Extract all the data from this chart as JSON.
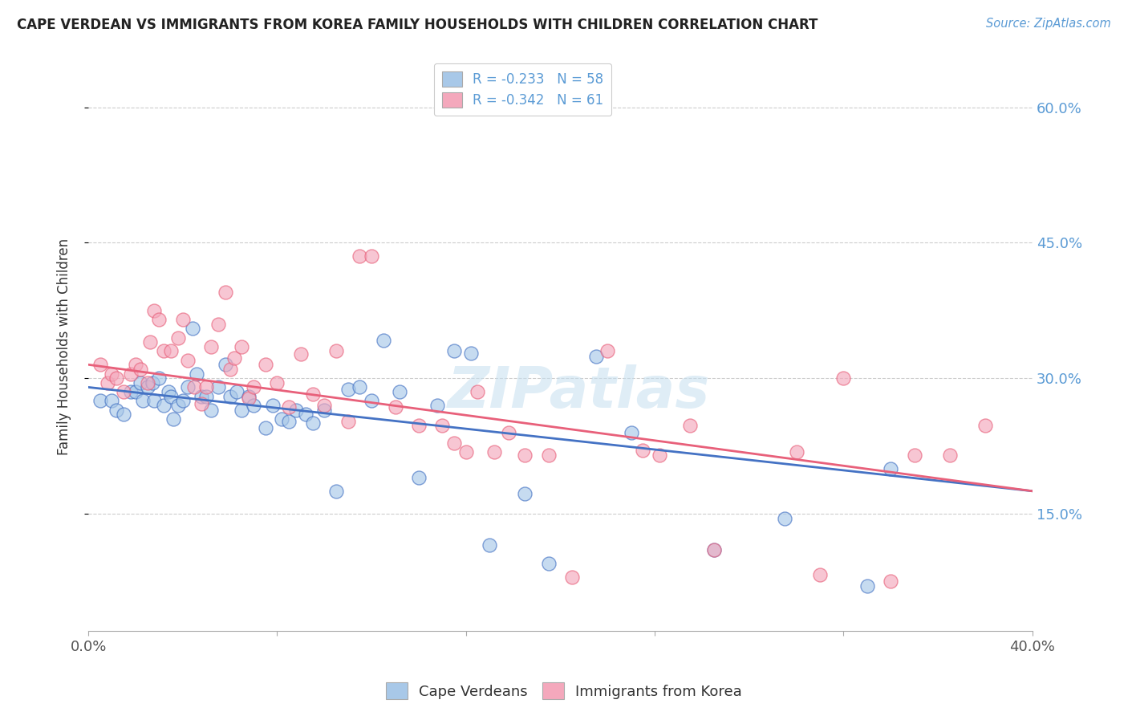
{
  "title": "CAPE VERDEAN VS IMMIGRANTS FROM KOREA FAMILY HOUSEHOLDS WITH CHILDREN CORRELATION CHART",
  "source": "Source: ZipAtlas.com",
  "ylabel": "Family Households with Children",
  "xlim": [
    0.0,
    0.4
  ],
  "ylim": [
    0.02,
    0.65
  ],
  "yticks": [
    0.15,
    0.3,
    0.45,
    0.6
  ],
  "ytick_labels": [
    "15.0%",
    "30.0%",
    "45.0%",
    "60.0%"
  ],
  "xticks": [
    0.0,
    0.08,
    0.16,
    0.24,
    0.32,
    0.4
  ],
  "xtick_labels": [
    "0.0%",
    "",
    "",
    "",
    "",
    "40.0%"
  ],
  "legend_r1": "R = -0.233   N = 58",
  "legend_r2": "R = -0.342   N = 61",
  "color_blue": "#A8C8E8",
  "color_pink": "#F4A8BC",
  "line_blue": "#4472C4",
  "line_pink": "#E8607A",
  "watermark": "ZIPatlas",
  "blue_line_start": 0.29,
  "blue_line_end": 0.175,
  "pink_line_start": 0.315,
  "pink_line_end": 0.175,
  "blue_x": [
    0.005,
    0.01,
    0.012,
    0.015,
    0.018,
    0.02,
    0.022,
    0.023,
    0.025,
    0.027,
    0.028,
    0.03,
    0.032,
    0.034,
    0.035,
    0.036,
    0.038,
    0.04,
    0.042,
    0.044,
    0.046,
    0.048,
    0.05,
    0.052,
    0.055,
    0.058,
    0.06,
    0.063,
    0.065,
    0.068,
    0.07,
    0.075,
    0.078,
    0.082,
    0.085,
    0.088,
    0.092,
    0.095,
    0.1,
    0.105,
    0.11,
    0.115,
    0.12,
    0.125,
    0.132,
    0.14,
    0.148,
    0.155,
    0.162,
    0.17,
    0.185,
    0.195,
    0.215,
    0.23,
    0.265,
    0.295,
    0.33,
    0.34
  ],
  "blue_y": [
    0.275,
    0.275,
    0.265,
    0.26,
    0.285,
    0.285,
    0.295,
    0.275,
    0.29,
    0.295,
    0.275,
    0.3,
    0.27,
    0.285,
    0.28,
    0.255,
    0.27,
    0.275,
    0.29,
    0.355,
    0.305,
    0.28,
    0.28,
    0.265,
    0.29,
    0.315,
    0.28,
    0.285,
    0.265,
    0.28,
    0.27,
    0.245,
    0.27,
    0.255,
    0.252,
    0.265,
    0.26,
    0.25,
    0.265,
    0.175,
    0.288,
    0.29,
    0.275,
    0.342,
    0.285,
    0.19,
    0.27,
    0.33,
    0.328,
    0.115,
    0.172,
    0.095,
    0.324,
    0.24,
    0.11,
    0.145,
    0.07,
    0.2
  ],
  "pink_x": [
    0.005,
    0.008,
    0.01,
    0.012,
    0.015,
    0.018,
    0.02,
    0.022,
    0.025,
    0.026,
    0.028,
    0.03,
    0.032,
    0.035,
    0.038,
    0.04,
    0.042,
    0.045,
    0.048,
    0.05,
    0.052,
    0.055,
    0.058,
    0.06,
    0.062,
    0.065,
    0.068,
    0.07,
    0.075,
    0.08,
    0.085,
    0.09,
    0.095,
    0.1,
    0.105,
    0.11,
    0.115,
    0.12,
    0.13,
    0.14,
    0.15,
    0.155,
    0.16,
    0.165,
    0.172,
    0.178,
    0.185,
    0.195,
    0.205,
    0.22,
    0.235,
    0.242,
    0.255,
    0.265,
    0.3,
    0.31,
    0.32,
    0.34,
    0.35,
    0.365,
    0.38
  ],
  "pink_y": [
    0.315,
    0.295,
    0.305,
    0.3,
    0.285,
    0.305,
    0.315,
    0.31,
    0.295,
    0.34,
    0.375,
    0.365,
    0.33,
    0.33,
    0.345,
    0.365,
    0.32,
    0.29,
    0.272,
    0.29,
    0.335,
    0.36,
    0.395,
    0.31,
    0.322,
    0.335,
    0.278,
    0.29,
    0.315,
    0.295,
    0.268,
    0.327,
    0.282,
    0.27,
    0.33,
    0.252,
    0.435,
    0.435,
    0.268,
    0.248,
    0.248,
    0.228,
    0.218,
    0.285,
    0.218,
    0.24,
    0.215,
    0.215,
    0.08,
    0.33,
    0.22,
    0.215,
    0.248,
    0.11,
    0.218,
    0.082,
    0.3,
    0.075,
    0.215,
    0.215,
    0.248
  ]
}
